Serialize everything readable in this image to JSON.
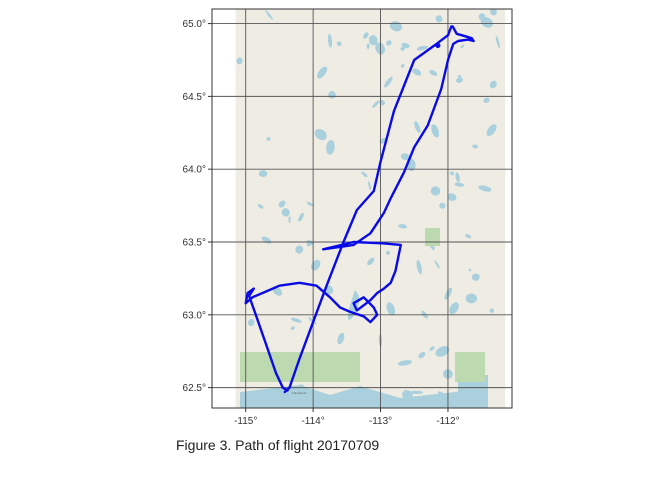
{
  "caption": "Figure 3. Path of flight 20170709",
  "colors": {
    "track": "#0a0ae6",
    "land": "#efece4",
    "water": "#a9d0dc",
    "park": "#bcd9b0",
    "grid": "#555555",
    "panel_border": "#333333"
  },
  "map": {
    "x_ticks": [
      {
        "value": -115,
        "label": "-115°"
      },
      {
        "value": -114,
        "label": "-114°"
      },
      {
        "value": -113,
        "label": "-113°"
      },
      {
        "value": -112,
        "label": "-112°"
      }
    ],
    "y_ticks": [
      {
        "value": 62.5,
        "label": "62.5°"
      },
      {
        "value": 63.0,
        "label": "63.0°"
      },
      {
        "value": 63.5,
        "label": "63.5°"
      },
      {
        "value": 64.0,
        "label": "64.0°"
      },
      {
        "value": 64.5,
        "label": "64.5°"
      },
      {
        "value": 65.0,
        "label": "65.0°"
      }
    ],
    "xlim": [
      -115.5,
      -111.05
    ],
    "ylim": [
      62.36,
      65.1
    ],
    "tile_extent": {
      "lon": [
        -115.15,
        -111.15
      ],
      "lat": [
        62.36,
        65.1
      ]
    },
    "flight_track": [
      [
        -114.42,
        62.47
      ],
      [
        -114.35,
        62.5
      ],
      [
        -114.2,
        62.7
      ],
      [
        -114.0,
        62.95
      ],
      [
        -113.8,
        63.2
      ],
      [
        -113.55,
        63.5
      ],
      [
        -113.35,
        63.72
      ],
      [
        -113.1,
        63.85
      ],
      [
        -113.0,
        64.05
      ],
      [
        -112.8,
        64.4
      ],
      [
        -112.5,
        64.75
      ],
      [
        -112.2,
        64.85
      ],
      [
        -112.0,
        64.92
      ],
      [
        -111.95,
        64.98
      ],
      [
        -111.93,
        64.98
      ],
      [
        -111.87,
        64.93
      ],
      [
        -111.72,
        64.91
      ],
      [
        -111.65,
        64.9
      ],
      [
        -111.62,
        64.88
      ],
      [
        -111.7,
        64.89
      ],
      [
        -111.85,
        64.88
      ],
      [
        -111.92,
        64.86
      ],
      [
        -111.95,
        64.82
      ],
      [
        -112.0,
        64.75
      ],
      [
        -112.1,
        64.55
      ],
      [
        -112.3,
        64.3
      ],
      [
        -112.5,
        64.15
      ],
      [
        -112.65,
        63.98
      ],
      [
        -112.85,
        63.8
      ],
      [
        -112.95,
        63.7
      ],
      [
        -113.15,
        63.56
      ],
      [
        -113.4,
        63.48
      ],
      [
        -113.55,
        63.47
      ],
      [
        -113.85,
        63.45
      ],
      [
        -113.4,
        63.5
      ],
      [
        -112.95,
        63.49
      ],
      [
        -112.7,
        63.48
      ],
      [
        -112.78,
        63.3
      ],
      [
        -112.85,
        63.22
      ],
      [
        -112.95,
        63.18
      ],
      [
        -113.05,
        63.15
      ],
      [
        -113.15,
        63.1
      ],
      [
        -113.35,
        63.03
      ],
      [
        -113.4,
        63.08
      ],
      [
        -113.25,
        63.12
      ],
      [
        -113.1,
        63.05
      ],
      [
        -113.05,
        63.0
      ],
      [
        -113.15,
        62.95
      ],
      [
        -113.25,
        62.99
      ],
      [
        -113.45,
        63.02
      ],
      [
        -113.6,
        63.05
      ],
      [
        -113.75,
        63.12
      ],
      [
        -113.95,
        63.2
      ],
      [
        -114.2,
        63.22
      ],
      [
        -114.5,
        63.2
      ],
      [
        -114.75,
        63.15
      ],
      [
        -114.9,
        63.12
      ],
      [
        -115.0,
        63.08
      ],
      [
        -114.97,
        63.15
      ],
      [
        -114.88,
        63.18
      ],
      [
        -114.95,
        63.13
      ],
      [
        -114.85,
        63.0
      ],
      [
        -114.7,
        62.8
      ],
      [
        -114.55,
        62.6
      ],
      [
        -114.45,
        62.5
      ],
      [
        -114.38,
        62.48
      ]
    ],
    "place_label": "Yellowknife"
  }
}
